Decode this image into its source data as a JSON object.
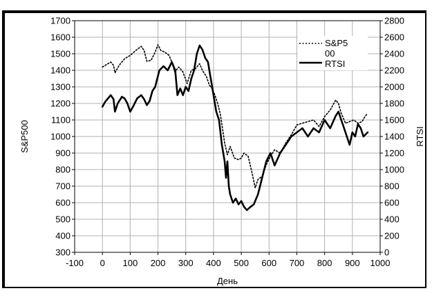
{
  "chart_data": {
    "type": "line",
    "title": "",
    "xlabel": "День",
    "ylabel_left": "S&P500",
    "ylabel_right": "RTSI",
    "xlim": [
      -100,
      1000
    ],
    "ylim_left": [
      300,
      1700
    ],
    "ylim_right": [
      0,
      2800
    ],
    "x_ticks": [
      "-100",
      "0",
      "100",
      "200",
      "300",
      "400",
      "500",
      "600",
      "700",
      "800",
      "900",
      "1000"
    ],
    "y_left_ticks": [
      "300",
      "400",
      "500",
      "600",
      "700",
      "800",
      "900",
      "1000",
      "1100",
      "1200",
      "1300",
      "1400",
      "1500",
      "1600",
      "1700"
    ],
    "y_right_ticks": [
      "0",
      "200",
      "400",
      "600",
      "800",
      "1000",
      "1200",
      "1400",
      "1600",
      "1800",
      "2000",
      "2200",
      "2400",
      "2600",
      "2800"
    ],
    "grid": true,
    "legend_position": "top-right",
    "series": [
      {
        "name": "S&P500",
        "legend_label_lines": [
          "S&P5",
          "00"
        ],
        "axis": "left",
        "style": "dotted",
        "x": [
          0,
          15,
          30,
          40,
          45,
          60,
          80,
          100,
          120,
          140,
          150,
          160,
          175,
          190,
          200,
          210,
          225,
          240,
          250,
          260,
          275,
          290,
          305,
          320,
          335,
          350,
          360,
          375,
          385,
          395,
          405,
          415,
          425,
          440,
          450,
          460,
          475,
          490,
          500,
          510,
          525,
          540,
          550,
          560,
          575,
          590,
          605,
          620,
          640,
          660,
          680,
          700,
          720,
          740,
          760,
          780,
          800,
          820,
          840,
          850,
          860,
          875,
          890,
          905,
          920,
          935,
          945,
          955
        ],
        "values": [
          1420,
          1435,
          1450,
          1430,
          1385,
          1430,
          1470,
          1490,
          1520,
          1545,
          1520,
          1455,
          1460,
          1510,
          1555,
          1520,
          1510,
          1490,
          1450,
          1390,
          1420,
          1390,
          1320,
          1400,
          1410,
          1440,
          1400,
          1360,
          1310,
          1290,
          1250,
          1200,
          1130,
          960,
          890,
          940,
          870,
          860,
          870,
          900,
          880,
          770,
          690,
          740,
          760,
          830,
          880,
          920,
          900,
          960,
          1010,
          1070,
          1080,
          1090,
          1100,
          1060,
          1120,
          1160,
          1220,
          1200,
          1140,
          1080,
          1090,
          1100,
          1080,
          1090,
          1120,
          1140
        ]
      },
      {
        "name": "RTSI",
        "axis": "right",
        "style": "solid",
        "x": [
          0,
          10,
          20,
          30,
          40,
          45,
          55,
          70,
          80,
          90,
          100,
          110,
          125,
          140,
          150,
          160,
          170,
          180,
          190,
          205,
          220,
          235,
          250,
          262,
          270,
          280,
          290,
          300,
          310,
          320,
          330,
          340,
          350,
          360,
          370,
          380,
          390,
          400,
          410,
          420,
          430,
          440,
          445,
          450,
          455,
          460,
          470,
          480,
          490,
          500,
          510,
          520,
          530,
          545,
          560,
          575,
          590,
          605,
          620,
          640,
          660,
          680,
          700,
          720,
          740,
          760,
          780,
          800,
          820,
          840,
          850,
          860,
          870,
          880,
          890,
          900,
          910,
          920,
          930,
          940,
          955
        ],
        "values": [
          1760,
          1820,
          1860,
          1900,
          1850,
          1700,
          1800,
          1880,
          1860,
          1800,
          1700,
          1760,
          1860,
          1900,
          1850,
          1780,
          1830,
          1950,
          2000,
          2200,
          2250,
          2200,
          2300,
          2200,
          1900,
          1980,
          1900,
          2000,
          1950,
          2100,
          2200,
          2400,
          2500,
          2450,
          2350,
          2300,
          2100,
          1900,
          1700,
          1600,
          1300,
          1100,
          900,
          1100,
          800,
          700,
          600,
          650,
          580,
          620,
          550,
          510,
          540,
          580,
          700,
          900,
          1100,
          1200,
          1050,
          1200,
          1300,
          1400,
          1450,
          1500,
          1400,
          1500,
          1450,
          1600,
          1500,
          1650,
          1700,
          1600,
          1500,
          1400,
          1300,
          1450,
          1400,
          1550,
          1500,
          1400,
          1450
        ]
      }
    ]
  }
}
